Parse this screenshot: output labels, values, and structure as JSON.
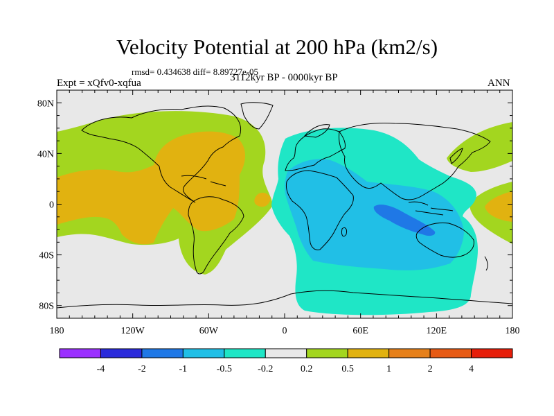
{
  "title": "Velocity Potential at 200 hPa (km2/s)",
  "stats_line": "rmsd= 0.434638 diff= 8.89727e-05",
  "experiment": "Expt = xQfv0-xqfua",
  "period": "3112kyr BP - 0000kyr BP",
  "season": "ANN",
  "lat_labels": [
    {
      "value": 80,
      "label": "80N"
    },
    {
      "value": 40,
      "label": "40N"
    },
    {
      "value": 0,
      "label": "0"
    },
    {
      "value": -40,
      "label": "40S"
    },
    {
      "value": -80,
      "label": "80S"
    }
  ],
  "lon_labels": [
    {
      "value": -180,
      "label": "180"
    },
    {
      "value": -120,
      "label": "120W"
    },
    {
      "value": -60,
      "label": "60W"
    },
    {
      "value": 0,
      "label": "0"
    },
    {
      "value": 60,
      "label": "60E"
    },
    {
      "value": 120,
      "label": "120E"
    },
    {
      "value": 180,
      "label": "180"
    }
  ],
  "colorbar": {
    "colors": [
      "#9b30ff",
      "#2b2bdb",
      "#1f78e6",
      "#21bfe6",
      "#1fe6c6",
      "#e8e8e8",
      "#a3d61f",
      "#e1b210",
      "#e6801a",
      "#e65a14",
      "#e61e0a"
    ],
    "labels": [
      "-4",
      "-2",
      "-1",
      "-0.5",
      "-0.2",
      "0.2",
      "0.5",
      "1",
      "2",
      "4"
    ]
  },
  "colors": {
    "background": "#e8e8e8",
    "positive_low": "#a3d61f",
    "positive_mid": "#e1b210",
    "positive_high": "#e6801a",
    "negative_low": "#1fe6c6",
    "negative_mid": "#21bfe6",
    "negative_high": "#1f78e6"
  }
}
